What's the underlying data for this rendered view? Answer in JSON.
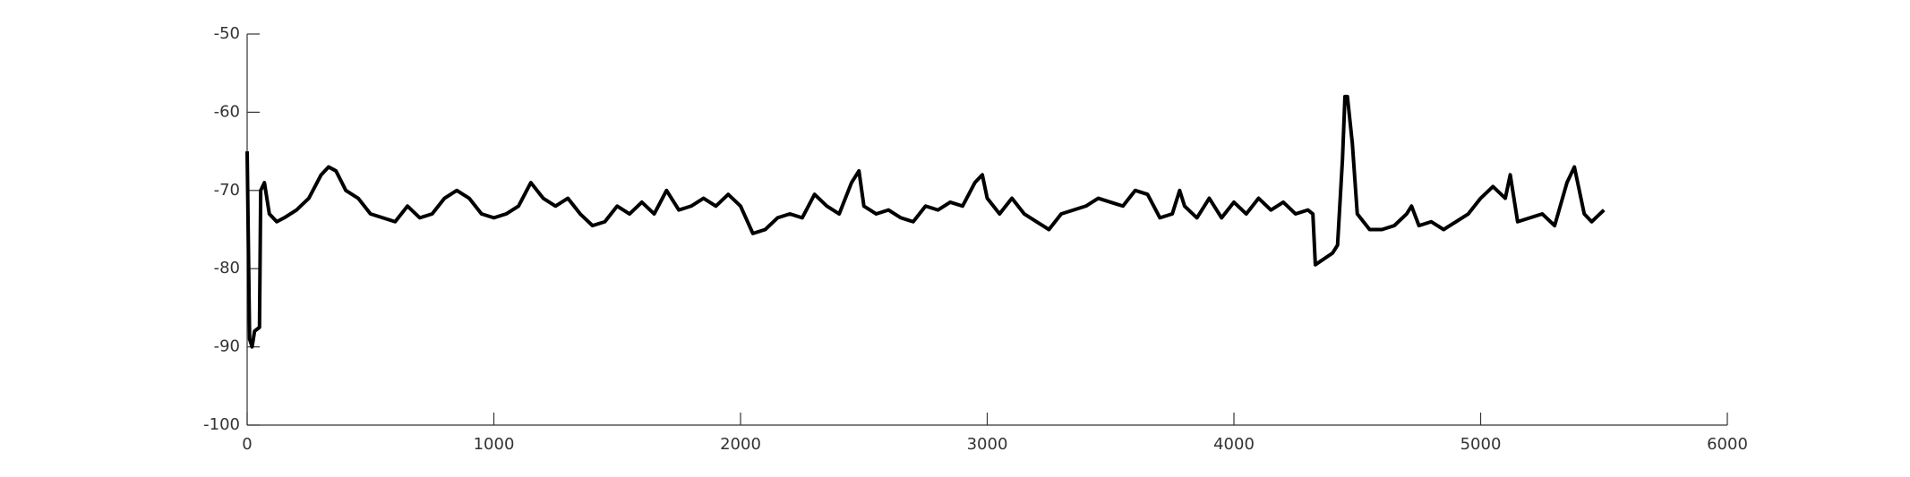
{
  "chart_data": {
    "type": "line",
    "x": [
      0,
      10,
      20,
      30,
      50,
      55,
      70,
      90,
      120,
      150,
      200,
      250,
      300,
      330,
      360,
      400,
      450,
      500,
      550,
      600,
      650,
      700,
      750,
      800,
      850,
      900,
      950,
      1000,
      1050,
      1100,
      1150,
      1200,
      1250,
      1300,
      1350,
      1400,
      1450,
      1500,
      1550,
      1600,
      1650,
      1700,
      1750,
      1800,
      1850,
      1900,
      1950,
      2000,
      2050,
      2100,
      2150,
      2200,
      2250,
      2300,
      2350,
      2400,
      2450,
      2480,
      2500,
      2550,
      2600,
      2650,
      2700,
      2750,
      2800,
      2850,
      2900,
      2950,
      2980,
      3000,
      3050,
      3100,
      3150,
      3200,
      3250,
      3300,
      3350,
      3400,
      3450,
      3500,
      3550,
      3600,
      3650,
      3700,
      3750,
      3780,
      3800,
      3850,
      3900,
      3950,
      4000,
      4050,
      4100,
      4150,
      4200,
      4250,
      4300,
      4320,
      4330,
      4400,
      4420,
      4440,
      4450,
      4460,
      4480,
      4500,
      4550,
      4600,
      4650,
      4700,
      4720,
      4750,
      4800,
      4850,
      4900,
      4950,
      5000,
      5050,
      5100,
      5120,
      5150,
      5200,
      5250,
      5300,
      5350,
      5380,
      5420,
      5450,
      5500
    ],
    "series": [
      {
        "color": "#000000",
        "values": [
          -65,
          -89,
          -90,
          -88,
          -87.5,
          -70,
          -69,
          -73,
          -74,
          -73.5,
          -72.5,
          -71,
          -68,
          -67,
          -67.5,
          -70,
          -71,
          -73,
          -73.5,
          -74,
          -72,
          -73.5,
          -73,
          -71,
          -70,
          -71,
          -73,
          -73.5,
          -73,
          -72,
          -69,
          -71,
          -72,
          -71,
          -73,
          -74.5,
          -74,
          -72,
          -73,
          -71.5,
          -73,
          -70,
          -72.5,
          -72,
          -71,
          -72,
          -70.5,
          -72,
          -75.5,
          -75,
          -73.5,
          -73,
          -73.5,
          -70.5,
          -72,
          -73,
          -69,
          -67.5,
          -72,
          -73,
          -72.5,
          -73.5,
          -74,
          -72,
          -72.5,
          -71.5,
          -72,
          -69,
          -68,
          -71,
          -73,
          -71,
          -73,
          -74,
          -75,
          -73,
          -72.5,
          -72,
          -71,
          -71.5,
          -72,
          -70,
          -70.5,
          -73.5,
          -73,
          -70,
          -72,
          -73.5,
          -71,
          -73.5,
          -71.5,
          -73,
          -71,
          -72.5,
          -71.5,
          -73,
          -72.5,
          -73,
          -79.5,
          -78,
          -77,
          -66,
          -58,
          -58,
          -64,
          -73,
          -75,
          -75,
          -74.5,
          -73,
          -72,
          -74.5,
          -74,
          -75,
          -74,
          -73,
          -71,
          -69.5,
          -71,
          -68,
          -74,
          -73.5,
          -73,
          -74.5,
          -69,
          -67,
          -73,
          -74,
          -72.5
        ]
      }
    ],
    "xlim": [
      0,
      6000
    ],
    "xticks": [
      0,
      1000,
      2000,
      3000,
      4000,
      5000,
      6000
    ],
    "ylim": [
      -100,
      -50
    ],
    "yticks": [
      -100,
      -90,
      -80,
      -70,
      -60,
      -50
    ]
  }
}
